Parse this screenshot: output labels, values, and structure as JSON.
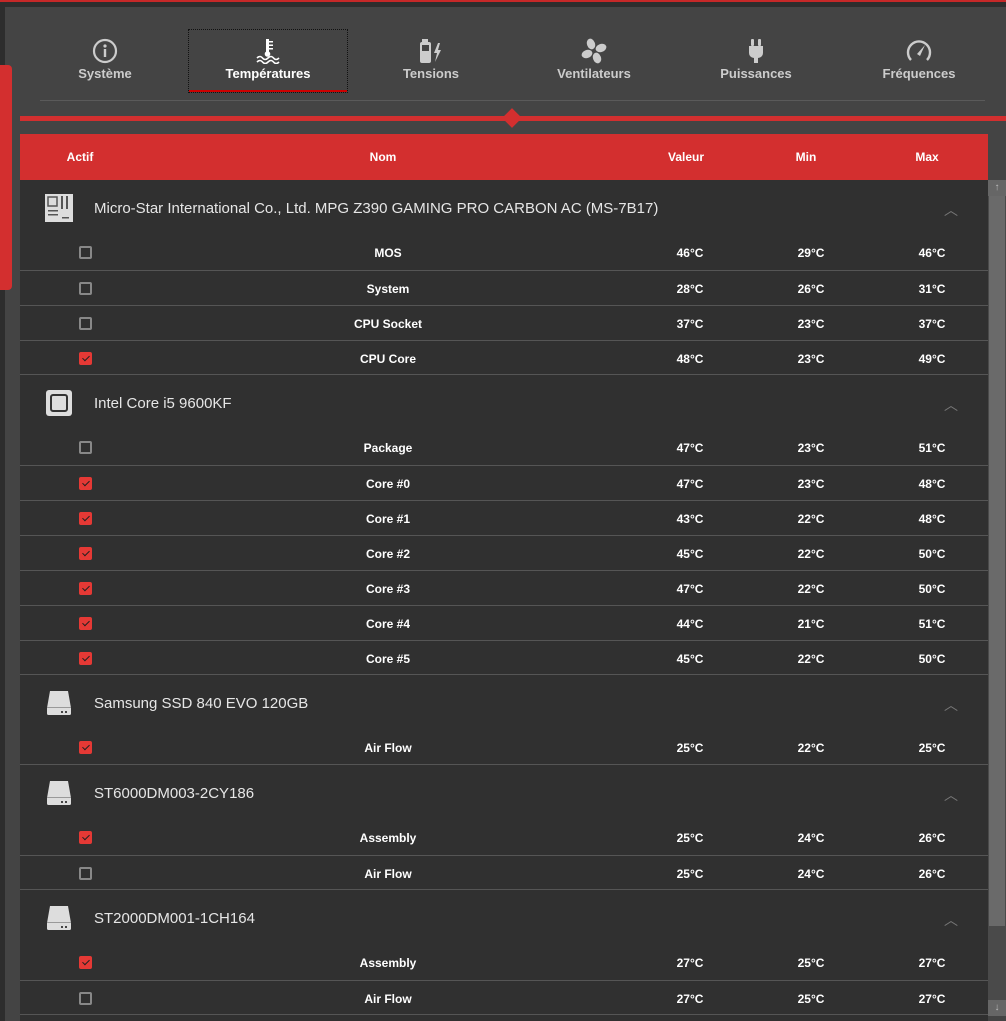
{
  "tabs": [
    {
      "label": "Système",
      "icon": "info-icon"
    },
    {
      "label": "Températures",
      "icon": "thermometer-icon",
      "active": true
    },
    {
      "label": "Tensions",
      "icon": "battery-bolt-icon"
    },
    {
      "label": "Ventilateurs",
      "icon": "fan-icon"
    },
    {
      "label": "Puissances",
      "icon": "plug-icon"
    },
    {
      "label": "Fréquences",
      "icon": "gauge-icon"
    }
  ],
  "columns": {
    "active": "Actif",
    "name": "Nom",
    "value": "Valeur",
    "min": "Min",
    "max": "Max"
  },
  "colors": {
    "accent": "#d32f2f",
    "panel": "#444444",
    "table": "#303030"
  },
  "groups": [
    {
      "name": "Micro-Star International Co., Ltd. MPG Z390 GAMING PRO CARBON AC (MS-7B17)",
      "icon": "motherboard-icon",
      "sensors": [
        {
          "checked": false,
          "name": "MOS",
          "value": "46°C",
          "min": "29°C",
          "max": "46°C"
        },
        {
          "checked": false,
          "name": "System",
          "value": "28°C",
          "min": "26°C",
          "max": "31°C"
        },
        {
          "checked": false,
          "name": "CPU Socket",
          "value": "37°C",
          "min": "23°C",
          "max": "37°C"
        },
        {
          "checked": true,
          "name": "CPU Core",
          "value": "48°C",
          "min": "23°C",
          "max": "49°C"
        }
      ]
    },
    {
      "name": "Intel Core i5 9600KF",
      "icon": "cpu-icon",
      "sensors": [
        {
          "checked": false,
          "name": "Package",
          "value": "47°C",
          "min": "23°C",
          "max": "51°C"
        },
        {
          "checked": true,
          "name": "Core #0",
          "value": "47°C",
          "min": "23°C",
          "max": "48°C"
        },
        {
          "checked": true,
          "name": "Core #1",
          "value": "43°C",
          "min": "22°C",
          "max": "48°C"
        },
        {
          "checked": true,
          "name": "Core #2",
          "value": "45°C",
          "min": "22°C",
          "max": "50°C"
        },
        {
          "checked": true,
          "name": "Core #3",
          "value": "47°C",
          "min": "22°C",
          "max": "50°C"
        },
        {
          "checked": true,
          "name": "Core #4",
          "value": "44°C",
          "min": "21°C",
          "max": "51°C"
        },
        {
          "checked": true,
          "name": "Core #5",
          "value": "45°C",
          "min": "22°C",
          "max": "50°C"
        }
      ]
    },
    {
      "name": "Samsung SSD 840 EVO 120GB",
      "icon": "drive-icon",
      "sensors": [
        {
          "checked": true,
          "name": "Air Flow",
          "value": "25°C",
          "min": "22°C",
          "max": "25°C"
        }
      ]
    },
    {
      "name": "ST6000DM003-2CY186",
      "icon": "drive-icon",
      "sensors": [
        {
          "checked": true,
          "name": "Assembly",
          "value": "25°C",
          "min": "24°C",
          "max": "26°C"
        },
        {
          "checked": false,
          "name": "Air Flow",
          "value": "25°C",
          "min": "24°C",
          "max": "26°C"
        }
      ]
    },
    {
      "name": "ST2000DM001-1CH164",
      "icon": "drive-icon",
      "sensors": [
        {
          "checked": true,
          "name": "Assembly",
          "value": "27°C",
          "min": "25°C",
          "max": "27°C"
        },
        {
          "checked": false,
          "name": "Air Flow",
          "value": "27°C",
          "min": "25°C",
          "max": "27°C"
        }
      ]
    }
  ]
}
